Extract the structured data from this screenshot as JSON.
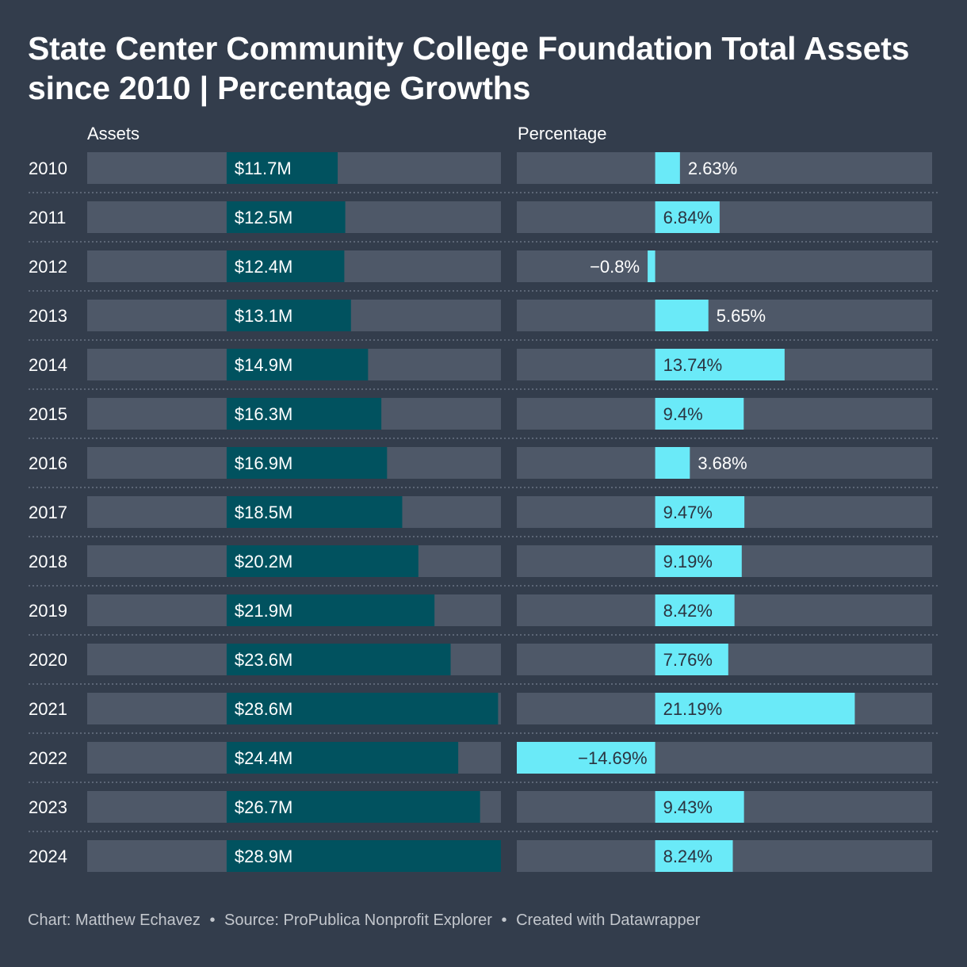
{
  "title": "State Center Community College Foundation Total Assets since 2010 | Percentage Growths",
  "headers": {
    "assets": "Assets",
    "percentage": "Percentage"
  },
  "footer": {
    "chart_credit": "Chart: Matthew Echavez",
    "source": "Source: ProPublica Nonprofit Explorer",
    "tool": "Created with Datawrapper",
    "separator": "•"
  },
  "colors": {
    "background": "#333d4c",
    "track": "#4e5868",
    "assets_bar": "#01525f",
    "percent_bar": "#6aeaf8",
    "percent_label_inside": "#2b3340",
    "divider": "#6b7483"
  },
  "chart_data": {
    "type": "bar",
    "orientation": "horizontal",
    "categories": [
      "2010",
      "2011",
      "2012",
      "2013",
      "2014",
      "2015",
      "2016",
      "2017",
      "2018",
      "2019",
      "2020",
      "2021",
      "2022",
      "2023",
      "2024"
    ],
    "series": [
      {
        "name": "Assets",
        "unit": "$M",
        "values": [
          11.7,
          12.5,
          12.4,
          13.1,
          14.9,
          16.3,
          16.9,
          18.5,
          20.2,
          21.9,
          23.6,
          28.6,
          24.4,
          26.7,
          28.9
        ],
        "labels": [
          "$11.7M",
          "$12.5M",
          "$12.4M",
          "$13.1M",
          "$14.9M",
          "$16.3M",
          "$16.9M",
          "$18.5M",
          "$20.2M",
          "$21.9M",
          "$23.6M",
          "$28.6M",
          "$24.4M",
          "$26.7M",
          "$28.9M"
        ],
        "xlim": [
          -14.69,
          28.9
        ]
      },
      {
        "name": "Percentage",
        "unit": "%",
        "values": [
          2.63,
          6.84,
          -0.8,
          5.65,
          13.74,
          9.4,
          3.68,
          9.47,
          9.19,
          8.42,
          7.76,
          21.19,
          -14.69,
          9.43,
          8.24
        ],
        "labels": [
          "2.63%",
          "6.84%",
          "−0.8%",
          "5.65%",
          "13.74%",
          "9.4%",
          "3.68%",
          "9.47%",
          "9.19%",
          "8.42%",
          "7.76%",
          "21.19%",
          "−14.69%",
          "9.43%",
          "8.24%"
        ],
        "xlim": [
          -14.69,
          29.4
        ]
      }
    ]
  }
}
